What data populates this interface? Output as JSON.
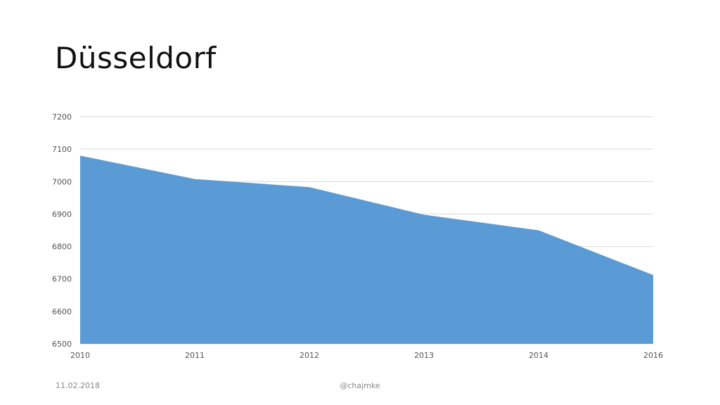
{
  "slide": {
    "title": "Düsseldorf",
    "footer_date": "11.02.2018",
    "footer_handle": "@chajmke"
  },
  "chart_data": {
    "type": "area",
    "title": "",
    "xlabel": "",
    "ylabel": "",
    "x": [
      "2010",
      "2011",
      "2012",
      "2013",
      "2014",
      "2016"
    ],
    "series": [
      {
        "values": [
          7080,
          7008,
          6983,
          6898,
          6850,
          6712
        ]
      }
    ],
    "ylim": [
      6500,
      7200
    ],
    "yticks": [
      7200,
      7100,
      7000,
      6900,
      6800,
      6700,
      6600,
      6500
    ],
    "grid": true,
    "colors": {
      "fill": "#5b9bd5",
      "grid": "#d9d9d9"
    }
  }
}
